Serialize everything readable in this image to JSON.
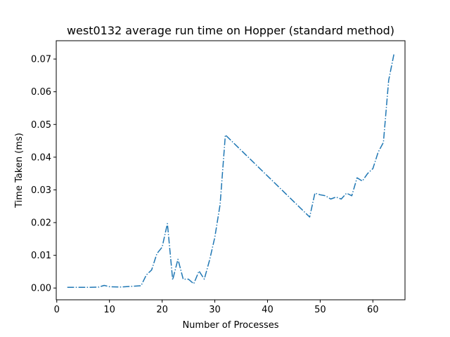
{
  "chart_data": {
    "type": "line",
    "title": "west0132 average run time on Hopper (standard method)",
    "xlabel": "Number of Processes",
    "ylabel": "Time Taken (ms)",
    "xlim": [
      -0.1,
      66.1
    ],
    "ylim": [
      -0.0036,
      0.0756
    ],
    "xticks": [
      0,
      10,
      20,
      30,
      40,
      50,
      60
    ],
    "xtick_labels": [
      "0",
      "10",
      "20",
      "30",
      "40",
      "50",
      "60"
    ],
    "yticks": [
      0.0,
      0.01,
      0.02,
      0.03,
      0.04,
      0.05,
      0.06,
      0.07
    ],
    "ytick_labels": [
      "0.00",
      "0.01",
      "0.02",
      "0.03",
      "0.04",
      "0.05",
      "0.06",
      "0.07"
    ],
    "grid": false,
    "legend": "none",
    "series": [
      {
        "color": "#1f77b4",
        "linestyle": "dashdot",
        "x": [
          2,
          4,
          6,
          8,
          9,
          10,
          12,
          14,
          16,
          17,
          18,
          19,
          20,
          21,
          22,
          23,
          24,
          25,
          26,
          27,
          28,
          29,
          30,
          31,
          32,
          48,
          49,
          50,
          51,
          52,
          53,
          54,
          55,
          56,
          57,
          58,
          59,
          60,
          61,
          62,
          63,
          64
        ],
        "y": [
          0.0002,
          0.0002,
          0.0002,
          0.0003,
          0.0008,
          0.0004,
          0.0003,
          0.0005,
          0.0007,
          0.004,
          0.0055,
          0.0105,
          0.0125,
          0.0197,
          0.0025,
          0.0088,
          0.0027,
          0.0027,
          0.0013,
          0.0052,
          0.0027,
          0.0085,
          0.0155,
          0.0255,
          0.0468,
          0.0217,
          0.029,
          0.0285,
          0.0282,
          0.0272,
          0.0278,
          0.0272,
          0.029,
          0.0282,
          0.0337,
          0.0327,
          0.035,
          0.0365,
          0.0415,
          0.0445,
          0.0635,
          0.0715
        ]
      }
    ]
  }
}
